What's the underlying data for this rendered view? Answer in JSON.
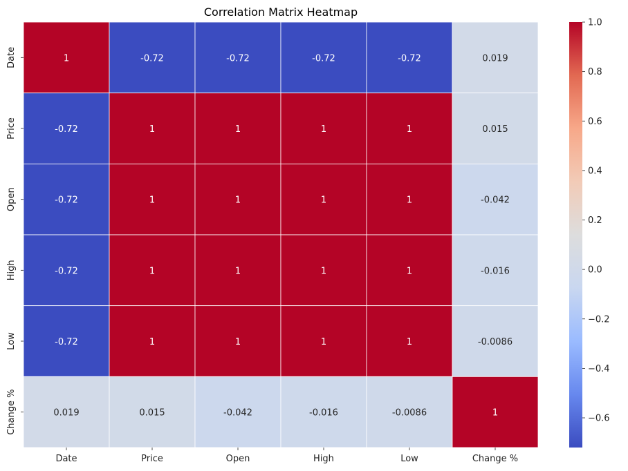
{
  "chart_data": {
    "type": "heatmap",
    "title": "Correlation Matrix Heatmap",
    "xlabel": "",
    "ylabel": "",
    "x_categories": [
      "Date",
      "Price",
      "Open",
      "High",
      "Low",
      "Change %"
    ],
    "y_categories": [
      "Date",
      "Price",
      "Open",
      "High",
      "Low",
      "Change %"
    ],
    "values": [
      [
        1,
        -0.72,
        -0.72,
        -0.72,
        -0.72,
        0.019
      ],
      [
        -0.72,
        1,
        1,
        1,
        1,
        0.015
      ],
      [
        -0.72,
        1,
        1,
        1,
        1,
        -0.042
      ],
      [
        -0.72,
        1,
        1,
        1,
        1,
        -0.016
      ],
      [
        -0.72,
        1,
        1,
        1,
        1,
        -0.0086
      ],
      [
        0.019,
        0.015,
        -0.042,
        -0.016,
        -0.0086,
        1
      ]
    ],
    "annotations": [
      [
        "1",
        "-0.72",
        "-0.72",
        "-0.72",
        "-0.72",
        "0.019"
      ],
      [
        "-0.72",
        "1",
        "1",
        "1",
        "1",
        "0.015"
      ],
      [
        "-0.72",
        "1",
        "1",
        "1",
        "1",
        "-0.042"
      ],
      [
        "-0.72",
        "1",
        "1",
        "1",
        "1",
        "-0.016"
      ],
      [
        "-0.72",
        "1",
        "1",
        "1",
        "1",
        "-0.0086"
      ],
      [
        "0.019",
        "0.015",
        "-0.042",
        "-0.016",
        "-0.0086",
        "1"
      ]
    ],
    "colormap": "coolwarm",
    "colormap_stops": [
      "#3b4cc0",
      "#6788ee",
      "#9abbff",
      "#c9d7f0",
      "#dddddd",
      "#f2cbb7",
      "#f7a889",
      "#e26952",
      "#b40426"
    ],
    "color_range": [
      -0.72,
      1
    ],
    "colorbar_ticks": [
      "1.0",
      "0.8",
      "0.6",
      "0.4",
      "0.2",
      "0.0",
      "−0.2",
      "−0.4",
      "−0.6"
    ],
    "colorbar_tick_values": [
      1.0,
      0.8,
      0.6,
      0.4,
      0.2,
      0.0,
      -0.2,
      -0.4,
      -0.6
    ],
    "grid": true,
    "grid_color": "#ffffff",
    "colorbar_position": "right"
  }
}
